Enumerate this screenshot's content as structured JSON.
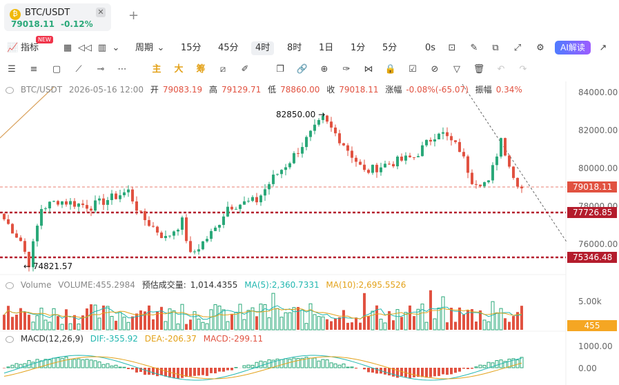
{
  "tab": {
    "title": "BTC/USDT",
    "price": "79018.11",
    "change_pct": "-0.12%",
    "close_glyph": "✕",
    "add_glyph": "+"
  },
  "toolbar1": {
    "indicators": "指标",
    "new_badge": "NEW",
    "period": "周期",
    "timeframes": [
      "15分",
      "45分",
      "4时",
      "8时",
      "1日",
      "1分",
      "5分"
    ],
    "active_timeframe": "4时",
    "countdown": "0s",
    "ai_label": "AI解读"
  },
  "toolbar2": {
    "main_label": "主",
    "big_label": "大",
    "sell_label": "筹"
  },
  "main_info": {
    "symbol": "BTC/USDT",
    "datetime": "2026-05-16 12:00",
    "open_label": "开",
    "open": "79083.19",
    "high_label": "高",
    "high": "79129.71",
    "low_label": "低",
    "low": "78860.00",
    "close_label": "收",
    "close": "79018.11",
    "change_label": "涨幅",
    "change": "-0.08%(-65.07)",
    "amp_label": "振幅",
    "amp": "0.34%"
  },
  "volume_info": {
    "label": "Volume",
    "volume": "VOLUME:455.2984",
    "est_label": "预估成交量:",
    "est": "1,014.4355",
    "ma5": "MA(5):2,360.7331",
    "ma10": "MA(10):2,695.5526"
  },
  "macd_info": {
    "label": "MACD(12,26,9)",
    "dif": "DIF:-355.92",
    "dea": "DEA:-206.37",
    "macd": "MACD:-299.11"
  },
  "axis": {
    "main_ticks": [
      "84000.00",
      "82000.00",
      "80000.00",
      "78000.00",
      "76000.00"
    ],
    "volume_tick": "5.00k",
    "volume_tag": "455",
    "macd_ticks": [
      "1000.00",
      "0.00"
    ]
  },
  "price_tags": {
    "current": "79018.11",
    "level1": "77726.85",
    "level2": "75346.48"
  },
  "annotations": {
    "high_mark": "82850.00 →",
    "low_mark": "← 74821.57"
  },
  "colors": {
    "up": "#2aa879",
    "down": "#e15241",
    "level_line": "#b41c2c",
    "ma_yellow": "#e3a21a",
    "ma_cyan": "#22b7b0"
  }
}
